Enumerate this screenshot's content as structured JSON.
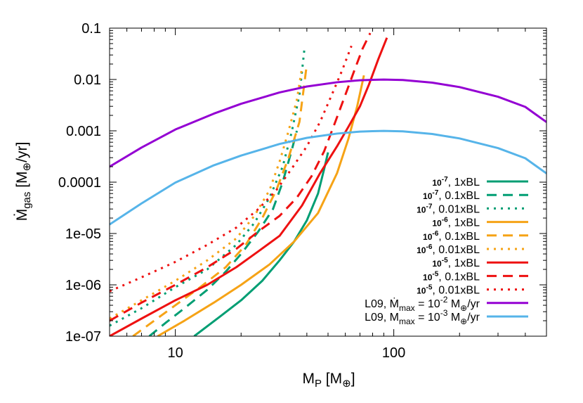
{
  "chart_data": {
    "type": "line",
    "title": "",
    "xlabel": {
      "main": "M",
      "sub": "P",
      "unit": " [M",
      "unit_sub": "⊕",
      "close": "]"
    },
    "ylabel": {
      "main": "Ṁ",
      "sub": "gas",
      "unit": " [M",
      "unit_sub": "⊕",
      "close": "/yr]"
    },
    "xscale": "log",
    "yscale": "log",
    "xlim": [
      5,
      500
    ],
    "ylim": [
      1e-07,
      0.1
    ],
    "x_ticks": [
      {
        "value": 10,
        "label": "10"
      },
      {
        "value": 100,
        "label": "100"
      }
    ],
    "y_ticks": [
      {
        "value": 1e-07,
        "label": "1e-07"
      },
      {
        "value": 1e-06,
        "label": "1e-06"
      },
      {
        "value": 1e-05,
        "label": "1e-05"
      },
      {
        "value": 0.0001,
        "label": "0.0001"
      },
      {
        "value": 0.001,
        "label": "0.001"
      },
      {
        "value": 0.01,
        "label": "0.01"
      },
      {
        "value": 0.1,
        "label": "0.1"
      }
    ],
    "legend_position": "bottom-right",
    "series": [
      {
        "name": "10-7, 1xBL",
        "base": "10",
        "exp": "-7",
        "rest": ", 1xBL",
        "color": "#009e73",
        "dash": "solid",
        "x": [
          12.2,
          16,
          20,
          25,
          30,
          35,
          40,
          45,
          48,
          50
        ],
        "y": [
          1e-07,
          2.4e-07,
          5e-07,
          1.2e-06,
          3e-06,
          7e-06,
          1.8e-05,
          6e-05,
          0.00018,
          0.00038
        ]
      },
      {
        "name": "10-7, 0.1xBL",
        "base": "10",
        "exp": "-7",
        "rest": ", 0.1xBL",
        "color": "#009e73",
        "dash": "dashed",
        "x": [
          7.6,
          9,
          11,
          14,
          17,
          20,
          24,
          28,
          31,
          34,
          36
        ],
        "y": [
          1e-07,
          1.8e-07,
          3.5e-07,
          8e-07,
          1.8e-06,
          4e-06,
          1.1e-05,
          3e-05,
          0.0001,
          0.0004,
          0.001
        ]
      },
      {
        "name": "10-7, 0.01xBL",
        "base": "10",
        "exp": "-7",
        "rest": ", 0.01xBL",
        "color": "#009e73",
        "dash": "dotted",
        "x": [
          5,
          7,
          10,
          14,
          19,
          23,
          27,
          31,
          34,
          37,
          39
        ],
        "y": [
          1.6e-07,
          3.5e-07,
          9e-07,
          2e-06,
          6e-06,
          1.6e-05,
          5e-05,
          0.0002,
          0.0009,
          0.005,
          0.04
        ]
      },
      {
        "name": "10-6, 1xBL",
        "base": "10",
        "exp": "-6",
        "rest": ", 1xBL",
        "color": "#f6a316",
        "dash": "solid",
        "x": [
          8.3,
          11,
          15,
          20,
          27,
          35,
          45,
          55,
          62,
          68,
          73
        ],
        "y": [
          1e-07,
          2e-07,
          4.5e-07,
          1e-06,
          2.5e-06,
          7e-06,
          2.5e-05,
          0.00015,
          0.0007,
          0.003,
          0.012
        ]
      },
      {
        "name": "10-6, 0.1xBL",
        "base": "10",
        "exp": "-6",
        "rest": ", 0.1xBL",
        "color": "#f6a316",
        "dash": "dashed",
        "x": [
          6.4,
          8,
          10,
          13,
          17,
          21,
          25,
          29,
          33,
          37,
          40
        ],
        "y": [
          1e-07,
          2e-07,
          4e-07,
          9e-07,
          2.2e-06,
          6e-06,
          2e-05,
          7e-05,
          0.0003,
          0.0015,
          0.02
        ]
      },
      {
        "name": "10-6, 0.01xBL",
        "base": "10",
        "exp": "-6",
        "rest": ", 0.01xBL",
        "color": "#f6a316",
        "dash": "dotted",
        "x": [
          5,
          7,
          10,
          14,
          19,
          23,
          27,
          30,
          33,
          36,
          38
        ],
        "y": [
          2.2e-07,
          5e-07,
          1.2e-06,
          3e-06,
          8e-06,
          2.2e-05,
          7e-05,
          0.00025,
          0.001,
          0.004,
          0.017
        ]
      },
      {
        "name": "10-5, 1xBL",
        "base": "10",
        "exp": "-5",
        "rest": ", 1xBL",
        "color": "#ee1111",
        "dash": "solid",
        "x": [
          5,
          7,
          10,
          14,
          19,
          24,
          30,
          38,
          46,
          55,
          62,
          70,
          77,
          85,
          93
        ],
        "y": [
          1e-07,
          2.2e-07,
          5e-07,
          1e-06,
          2.2e-06,
          4.5e-06,
          9e-06,
          3.5e-05,
          0.00015,
          0.0005,
          0.0012,
          0.003,
          0.008,
          0.025,
          0.065
        ]
      },
      {
        "name": "10-5, 0.1xBL",
        "base": "10",
        "exp": "-5",
        "rest": ", 0.1xBL",
        "color": "#ee1111",
        "dash": "dashed",
        "x": [
          5,
          7,
          10,
          14,
          19,
          24,
          30,
          36,
          42,
          48,
          54,
          60,
          66,
          72,
          78
        ],
        "y": [
          2e-07,
          4.5e-07,
          1e-06,
          2.2e-06,
          5e-06,
          1.1e-05,
          2.2e-05,
          5e-05,
          0.00013,
          0.0004,
          0.0015,
          0.005,
          0.015,
          0.04,
          0.08
        ]
      },
      {
        "name": "10-5, 0.01xBL",
        "base": "10",
        "exp": "-5",
        "rest": ", 0.01xBL",
        "color": "#ee1111",
        "dash": "dotted",
        "x": [
          5,
          7,
          10,
          14,
          19,
          24,
          29,
          34,
          40,
          46,
          52,
          58,
          64
        ],
        "y": [
          7.5e-07,
          1.4e-06,
          2.8e-06,
          6e-06,
          1.3e-05,
          3e-05,
          7e-05,
          0.00018,
          0.0005,
          0.0015,
          0.005,
          0.015,
          0.045
        ]
      },
      {
        "name": "L09, Ṁmax = 10-2 M⊕/yr",
        "prefix": "L09, ",
        "symbol": "Ṁ",
        "sub": "max",
        "mid": " = 10",
        "exp": "-2",
        "unit": " M",
        "unit_sub": "⊕",
        "tail": "/yr",
        "color": "#9400d3",
        "dash": "solid",
        "x": [
          5,
          7,
          10,
          15,
          20,
          30,
          40,
          55,
          70,
          80,
          90,
          110,
          150,
          200,
          300,
          400,
          500
        ],
        "y": [
          0.0002,
          0.000472,
          0.00106,
          0.00216,
          0.00336,
          0.00559,
          0.0073,
          0.00883,
          0.00965,
          0.00985,
          0.00996,
          0.00976,
          0.00867,
          0.00711,
          0.00461,
          0.00292,
          0.00148
        ]
      },
      {
        "name": "L09, Mmax = 10-3 M⊕/yr",
        "prefix": "L09, ",
        "symbol": "M",
        "sub": "max",
        "mid": " = 10",
        "exp": "-3",
        "unit": " M",
        "unit_sub": "⊕",
        "tail": "/yr",
        "color": "#56b4e9",
        "dash": "solid",
        "x": [
          5,
          7,
          10,
          15,
          20,
          30,
          40,
          55,
          70,
          80,
          90,
          110,
          150,
          200,
          300,
          400,
          500
        ],
        "y": [
          1.5e-05,
          3.85e-05,
          9.81e-05,
          0.000213,
          0.00033,
          0.000554,
          0.00073,
          0.000883,
          0.000965,
          0.000985,
          0.000996,
          0.000976,
          0.000867,
          0.000711,
          0.000461,
          0.000292,
          0.000148
        ]
      }
    ]
  }
}
